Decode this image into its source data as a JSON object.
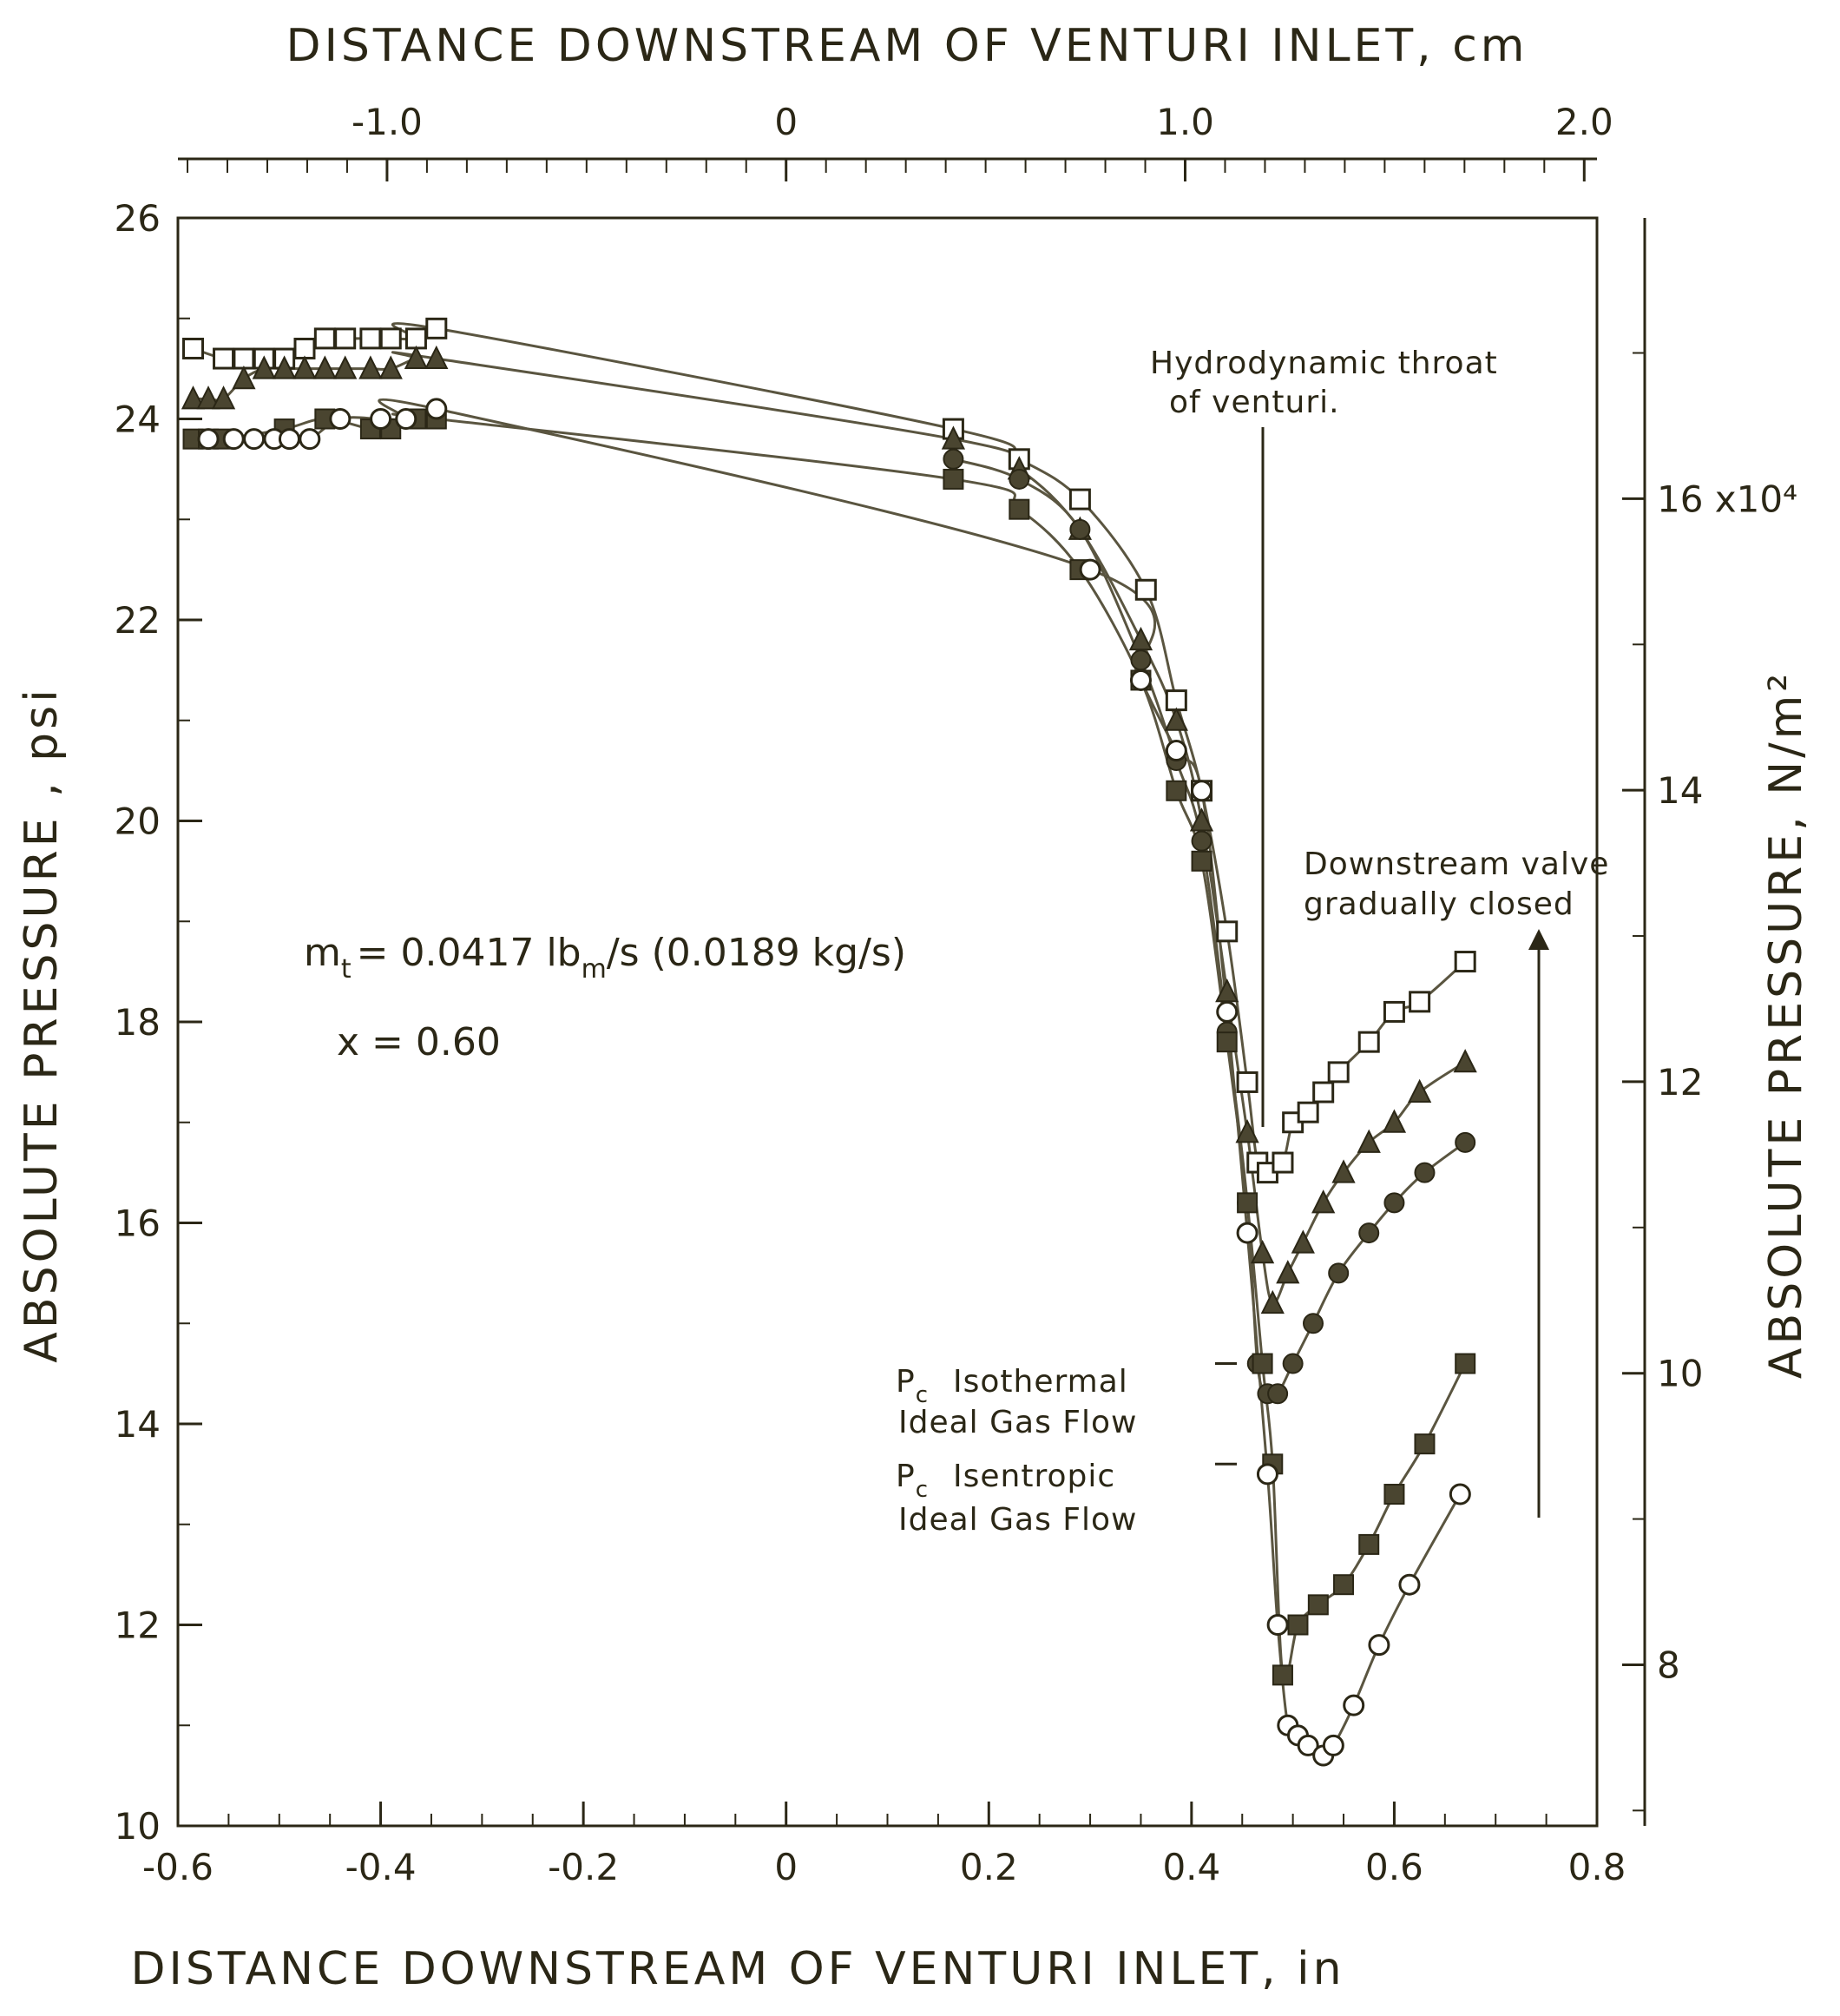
{
  "chart_data": {
    "type": "line",
    "x_axis": {
      "label": "DISTANCE DOWNSTREAM OF VENTURI INLET, in",
      "range": [
        -0.6,
        0.8
      ],
      "ticks": [
        "-0.6",
        "-0.4",
        "-0.2",
        "0",
        "0.2",
        "0.4",
        "0.6",
        "0.8"
      ]
    },
    "x2_axis": {
      "label": "DISTANCE DOWNSTREAM OF VENTURI INLET, cm",
      "ticks": [
        "-1.0",
        "0",
        "1.0",
        "2.0"
      ]
    },
    "y_axis": {
      "label": "ABSOLUTE PRESSURE , psi",
      "range": [
        10,
        26
      ],
      "ticks": [
        "10",
        "12",
        "14",
        "16",
        "18",
        "20",
        "22",
        "24",
        "26"
      ]
    },
    "y2_axis": {
      "label": "ABSOLUTE PRESSURE, N/m²",
      "ticks": [
        "8",
        "10",
        "12",
        "14",
        "16 x10⁴"
      ]
    },
    "grid": false,
    "annotations": {
      "mass_flow": "m",
      "mass_flow_sub": "t",
      "mass_flow_value": "= 0.0417 lb",
      "mass_flow_unit_sub": "m",
      "mass_flow_rest": "/s  (0.0189 kg/s)",
      "quality": "x = 0.60",
      "throat_line1": "Hydrodynamic throat",
      "throat_line2": "of venturi.",
      "valve_line1": "Downstream valve",
      "valve_line2": "gradually closed",
      "pc_label": "P",
      "pc_sub": "c",
      "isothermal_line1": "Isothermal",
      "isothermal_line2": "Ideal Gas Flow",
      "isentropic_line1": "Isentropic",
      "isentropic_line2": "Ideal Gas Flow"
    },
    "reference_markers": {
      "isothermal_pc": 14.6,
      "isentropic_pc": 13.6
    },
    "series": [
      {
        "marker": "open-square",
        "x": [
          -0.585,
          -0.555,
          -0.535,
          -0.515,
          -0.495,
          -0.475,
          -0.455,
          -0.435,
          -0.41,
          -0.39,
          -0.365,
          -0.345,
          0.165,
          0.23,
          0.29,
          0.355,
          0.385,
          0.41,
          0.435,
          0.455,
          0.465,
          0.475,
          0.49,
          0.5,
          0.515,
          0.53,
          0.545,
          0.575,
          0.6,
          0.625,
          0.67
        ],
        "y": [
          24.7,
          24.6,
          24.6,
          24.6,
          24.6,
          24.7,
          24.8,
          24.8,
          24.8,
          24.8,
          24.8,
          24.9,
          23.9,
          23.6,
          23.2,
          22.3,
          21.2,
          20.3,
          18.9,
          17.4,
          16.6,
          16.5,
          16.6,
          17.0,
          17.1,
          17.3,
          17.5,
          17.8,
          18.1,
          18.2,
          18.6
        ]
      },
      {
        "marker": "filled-triangle",
        "x": [
          -0.585,
          -0.57,
          -0.555,
          -0.535,
          -0.515,
          -0.495,
          -0.475,
          -0.455,
          -0.435,
          -0.41,
          -0.39,
          -0.365,
          -0.345,
          0.165,
          0.23,
          0.29,
          0.35,
          0.385,
          0.41,
          0.435,
          0.455,
          0.47,
          0.48,
          0.495,
          0.51,
          0.53,
          0.55,
          0.575,
          0.6,
          0.625,
          0.67
        ],
        "y": [
          24.2,
          24.2,
          24.2,
          24.4,
          24.5,
          24.5,
          24.5,
          24.5,
          24.5,
          24.5,
          24.5,
          24.6,
          24.6,
          23.8,
          23.5,
          22.9,
          21.8,
          21.0,
          20.0,
          18.3,
          16.9,
          15.7,
          15.2,
          15.5,
          15.8,
          16.2,
          16.5,
          16.8,
          17.0,
          17.3,
          17.6
        ]
      },
      {
        "marker": "filled-circle",
        "x": [
          0.165,
          0.23,
          0.29,
          0.35,
          0.385,
          0.41,
          0.435,
          0.455,
          0.465,
          0.475,
          0.485,
          0.5,
          0.52,
          0.545,
          0.575,
          0.6,
          0.63,
          0.67
        ],
        "y": [
          23.6,
          23.4,
          22.9,
          21.6,
          20.6,
          19.8,
          17.9,
          16.2,
          14.6,
          14.3,
          14.3,
          14.6,
          15.0,
          15.5,
          15.9,
          16.2,
          16.5,
          16.8
        ]
      },
      {
        "marker": "filled-square",
        "x": [
          -0.585,
          -0.57,
          -0.555,
          -0.495,
          -0.455,
          -0.41,
          -0.39,
          -0.365,
          -0.345,
          0.165,
          0.23,
          0.29,
          0.35,
          0.385,
          0.41,
          0.435,
          0.455,
          0.47,
          0.48,
          0.49,
          0.505,
          0.525,
          0.55,
          0.575,
          0.6,
          0.63,
          0.67
        ],
        "y": [
          23.8,
          23.8,
          23.8,
          23.9,
          24.0,
          23.9,
          23.9,
          24.0,
          24.0,
          23.4,
          23.1,
          22.5,
          21.4,
          20.3,
          19.6,
          17.8,
          16.2,
          14.6,
          13.6,
          11.5,
          12.0,
          12.2,
          12.4,
          12.8,
          13.3,
          13.8,
          14.6
        ]
      },
      {
        "marker": "open-circle",
        "x": [
          -0.57,
          -0.545,
          -0.525,
          -0.505,
          -0.49,
          -0.47,
          -0.44,
          -0.4,
          -0.375,
          -0.345,
          0.3,
          0.35,
          0.385,
          0.41,
          0.435,
          0.455,
          0.475,
          0.485,
          0.495,
          0.505,
          0.515,
          0.53,
          0.54,
          0.56,
          0.585,
          0.615,
          0.665
        ],
        "y": [
          23.8,
          23.8,
          23.8,
          23.8,
          23.8,
          23.8,
          24.0,
          24.0,
          24.0,
          24.1,
          22.5,
          21.4,
          20.7,
          20.3,
          18.1,
          15.9,
          13.5,
          12.0,
          11.0,
          10.9,
          10.8,
          10.7,
          10.8,
          11.2,
          11.8,
          12.4,
          13.3
        ]
      }
    ]
  }
}
